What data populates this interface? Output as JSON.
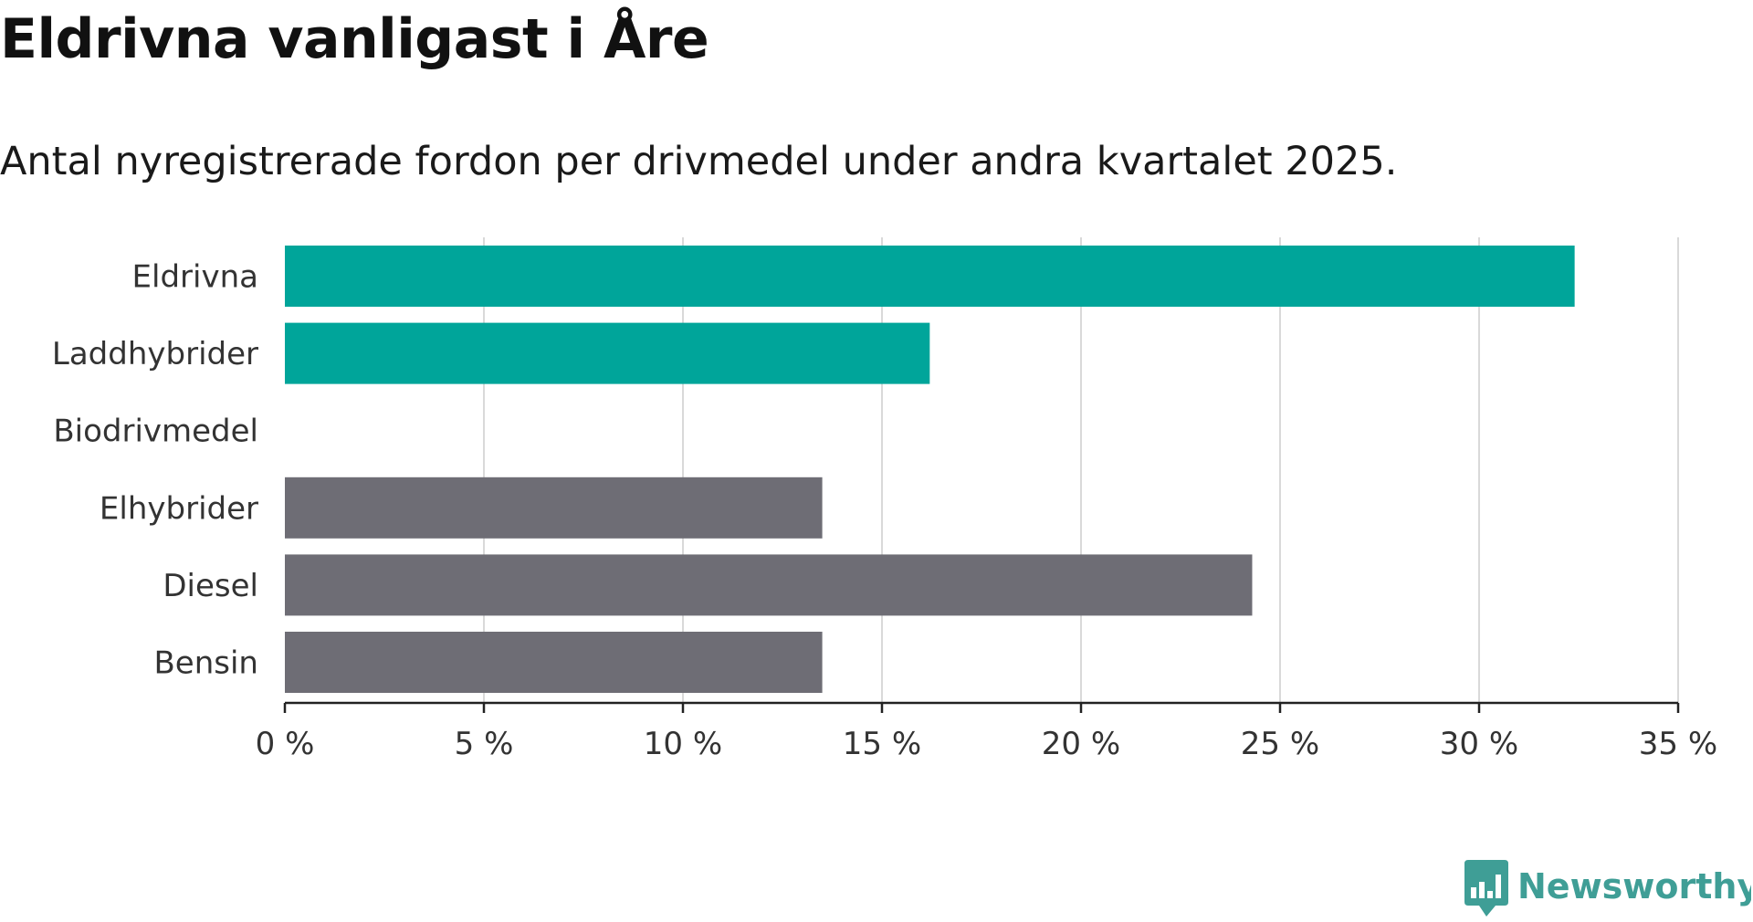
{
  "title": "Eldrivna vanligast i Åre",
  "subtitle": "Antal nyregistrerade fordon per drivmedel under andra kvartalet 2025.",
  "brand": {
    "name": "Newsworthy",
    "color": "#3f9e96"
  },
  "colors": {
    "highlight": "#00a59a",
    "other": "#6e6d75",
    "grid": "#d9d9d9",
    "axis": "#222222"
  },
  "chart_data": {
    "type": "bar",
    "orientation": "horizontal",
    "categories": [
      "Eldrivna",
      "Laddhybrider",
      "Biodrivmedel",
      "Elhybrider",
      "Diesel",
      "Bensin"
    ],
    "values": [
      32.4,
      16.2,
      0,
      13.5,
      24.3,
      13.5
    ],
    "bar_colors": [
      "#00a59a",
      "#00a59a",
      "#6e6d75",
      "#6e6d75",
      "#6e6d75",
      "#6e6d75"
    ],
    "xlim": [
      0,
      35
    ],
    "xticks": [
      0,
      5,
      10,
      15,
      20,
      25,
      30,
      35
    ],
    "xtick_labels": [
      "0 %",
      "5 %",
      "10 %",
      "15 %",
      "20 %",
      "25 %",
      "30 %",
      "35 %"
    ],
    "grid": "vertical",
    "legend": "none"
  }
}
